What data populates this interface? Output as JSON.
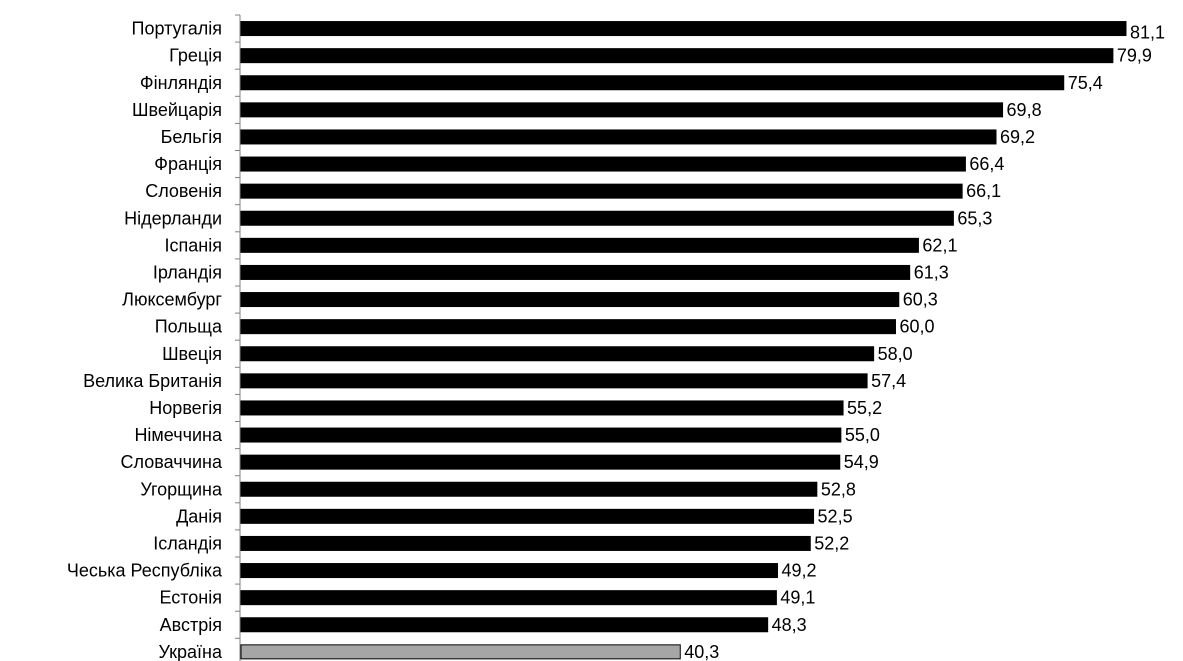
{
  "chart_data": {
    "type": "bar",
    "orientation": "horizontal",
    "categories": [
      "Португалія",
      "Греція",
      "Фінляндія",
      "Швейцарія",
      "Бельгія",
      "Франція",
      "Словенія",
      "Нідерланди",
      "Іспанія",
      "Ірландія",
      "Люксембург",
      "Польща",
      "Швеція",
      "Велика Британія",
      "Норвегія",
      "Німеччина",
      "Словаччина",
      "Угорщина",
      "Данія",
      "Ісландія",
      "Чеська Республіка",
      "Естонія",
      "Австрія",
      "Україна"
    ],
    "values": [
      81.1,
      79.9,
      75.4,
      69.8,
      69.2,
      66.4,
      66.1,
      65.3,
      62.1,
      61.3,
      60.3,
      60.0,
      58.0,
      57.4,
      55.2,
      55.0,
      54.9,
      52.8,
      52.5,
      52.2,
      49.2,
      49.1,
      48.3,
      40.3
    ],
    "value_labels": [
      "81,1",
      "79,9",
      "75,4",
      "69,8",
      "69,2",
      "66,4",
      "66,1",
      "65,3",
      "62,1",
      "61,3",
      "60,3",
      "60,0",
      "58,0",
      "57,4",
      "55,2",
      "55,0",
      "54,9",
      "52,8",
      "52,5",
      "52,2",
      "49,2",
      "49,1",
      "48,3",
      "40,3"
    ],
    "xlim": [
      0,
      81.1
    ],
    "grid": false,
    "colors": {
      "bar": "#000000",
      "highlight": "#a6a6a6"
    },
    "highlight_category": "Україна"
  }
}
